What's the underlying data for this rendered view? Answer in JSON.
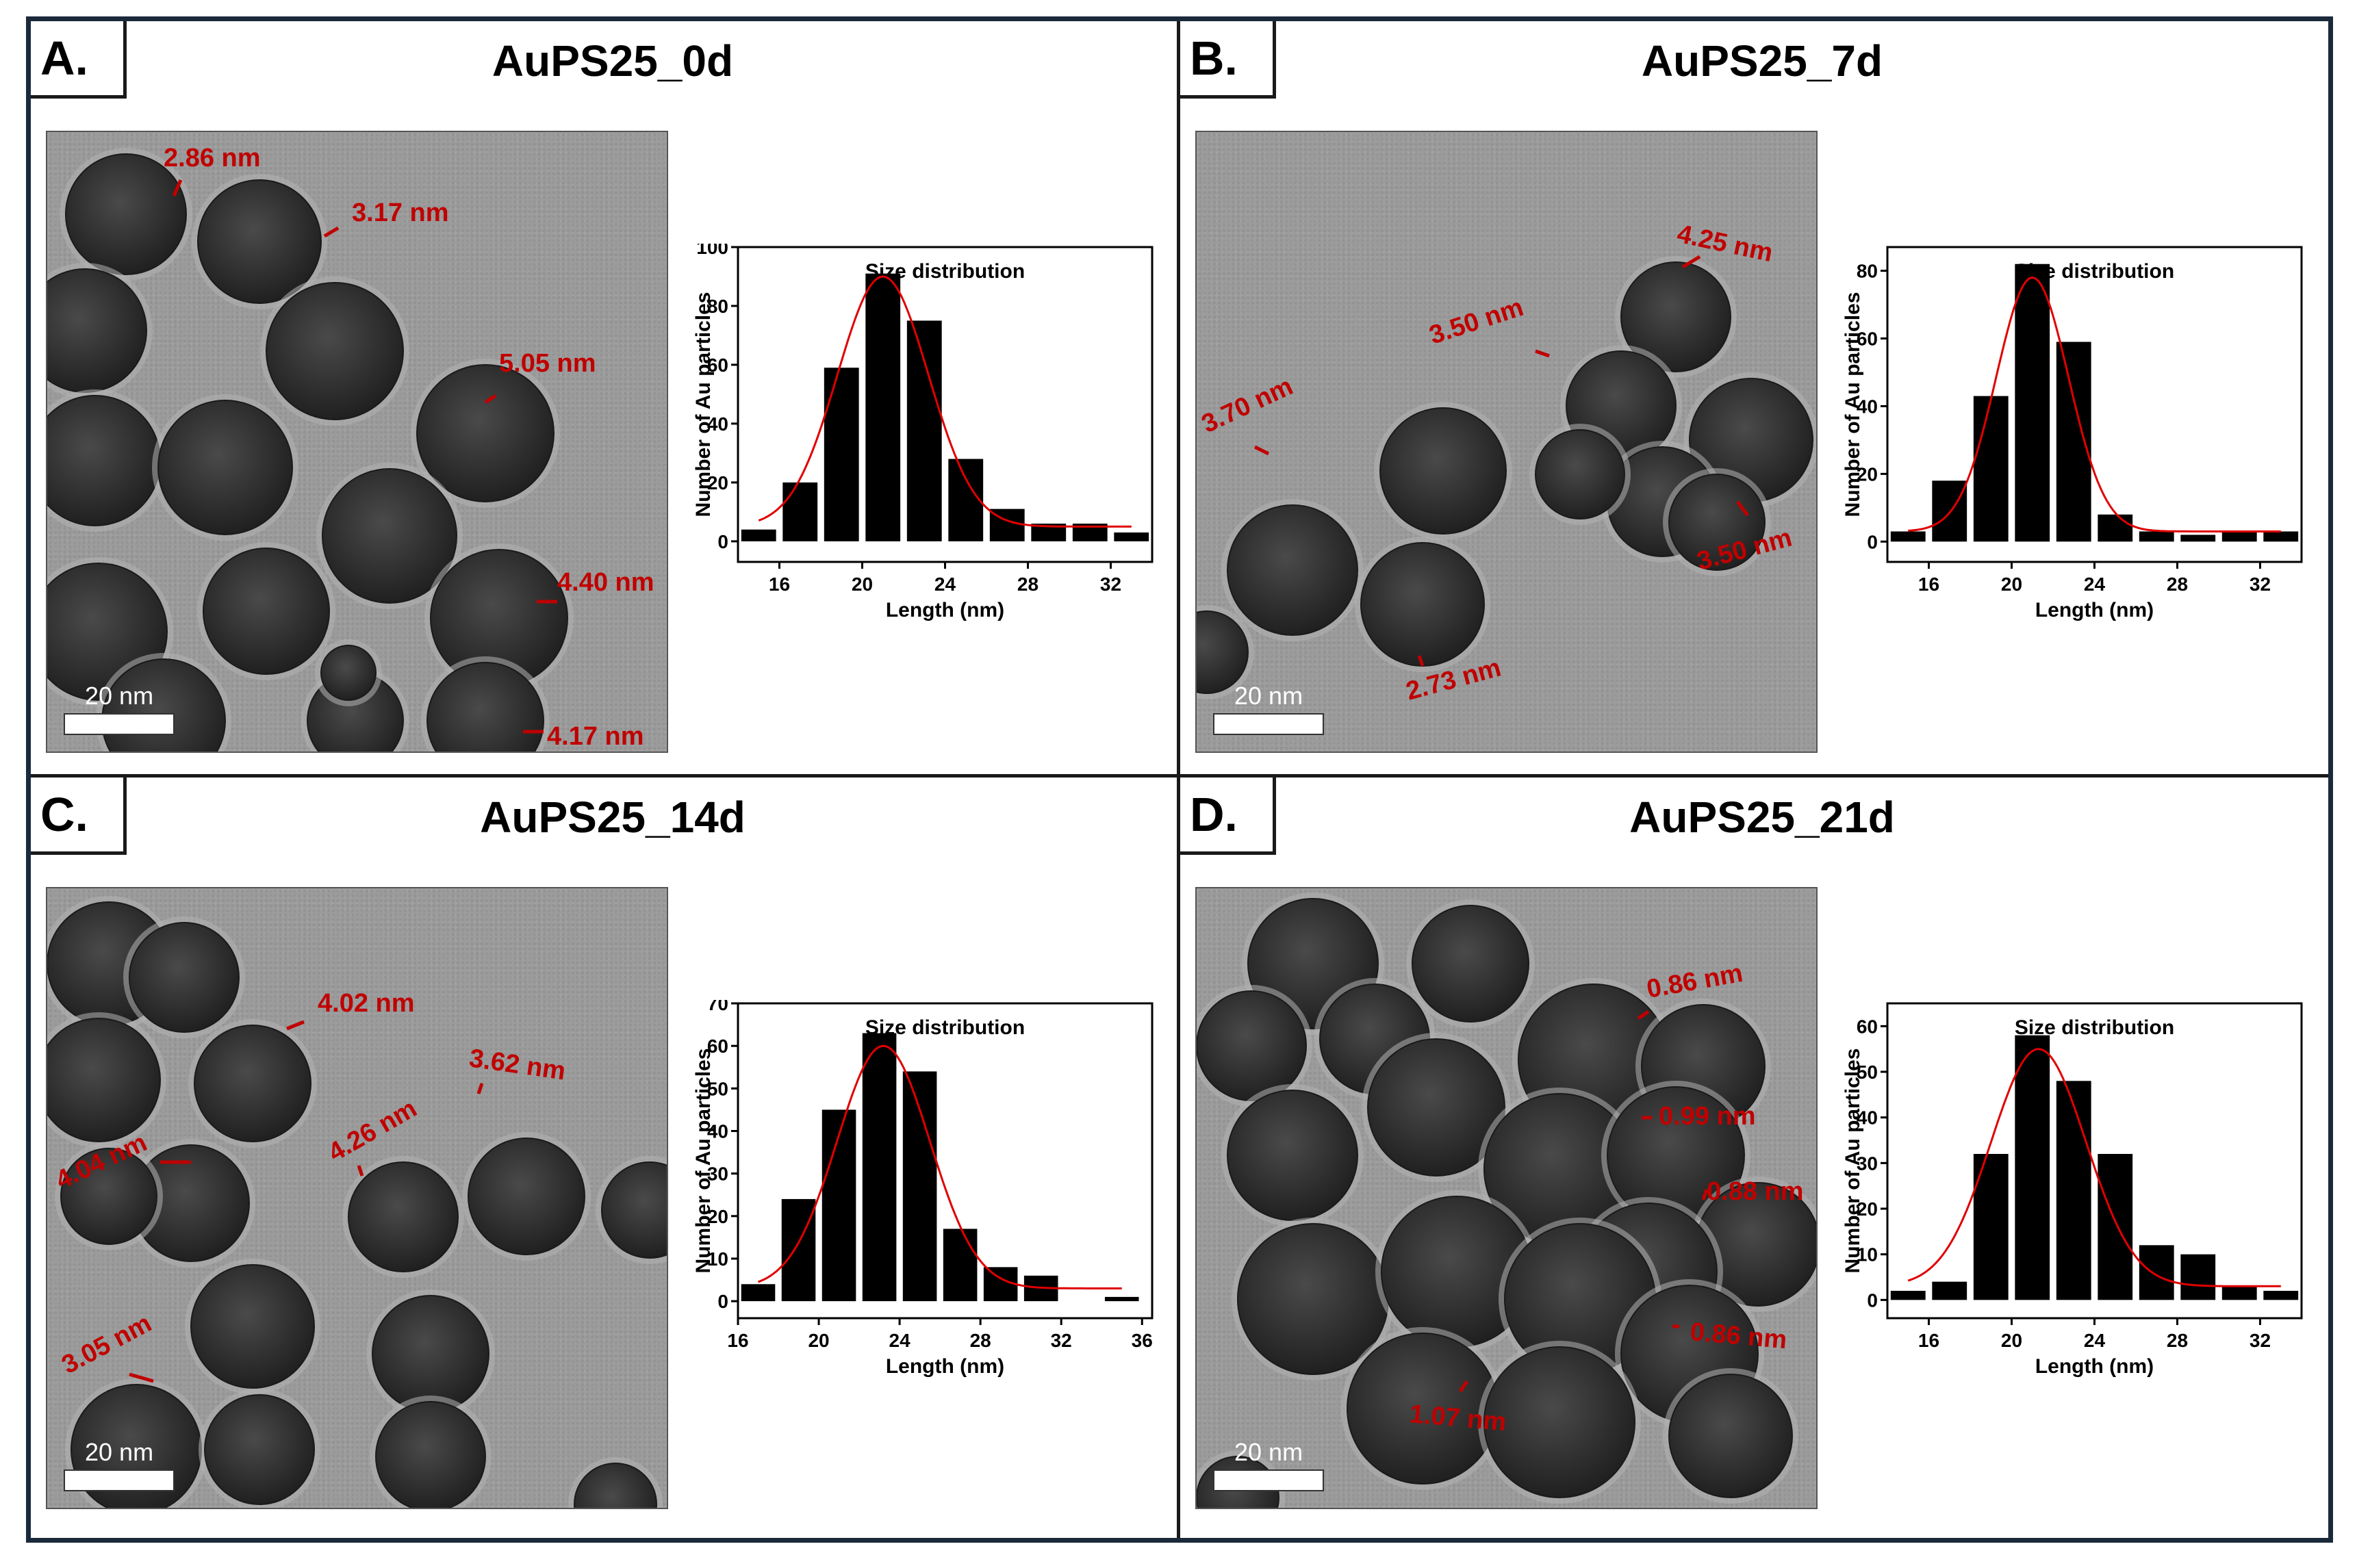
{
  "panels": [
    {
      "label": "A.",
      "title": "AuPS25_0d",
      "scale_bar": "20 nm",
      "shell_labels": [
        "2.86 nm",
        "3.17 nm",
        "5.05 nm",
        "4.40 nm",
        "4.17 nm"
      ]
    },
    {
      "label": "B.",
      "title": "AuPS25_7d",
      "scale_bar": "20 nm",
      "shell_labels": [
        "4.25 nm",
        "3.50 nm",
        "3.70 nm",
        "3.50 nm",
        "2.73 nm"
      ]
    },
    {
      "label": "C.",
      "title": "AuPS25_14d",
      "scale_bar": "20 nm",
      "shell_labels": [
        "4.02 nm",
        "3.62 nm",
        "4.26 nm",
        "4.04 nm",
        "3.05 nm"
      ]
    },
    {
      "label": "D.",
      "title": "AuPS25_21d",
      "scale_bar": "20 nm",
      "shell_labels": [
        "0.86 nm",
        "0.99 nm",
        "0.88 nm",
        "0.86 nm",
        "1.07 nm"
      ]
    }
  ],
  "colors": {
    "annotation": "#c00000",
    "bars": "#000000",
    "fit": "#e00000",
    "frame": "#1a2a3a"
  },
  "chart_data": [
    {
      "type": "bar",
      "title": "Size distribution",
      "xlabel": "Length (nm)",
      "ylabel": "Number of Au particles",
      "x": [
        15,
        17,
        19,
        21,
        23,
        25,
        27,
        29,
        31,
        33
      ],
      "values": [
        4,
        20,
        59,
        91,
        75,
        28,
        11,
        6,
        6,
        3
      ],
      "xlim": [
        14,
        34
      ],
      "xticks": [
        16,
        20,
        24,
        28,
        32
      ],
      "ylim": [
        -7,
        100
      ],
      "yticks": [
        0,
        20,
        40,
        60,
        80,
        100
      ],
      "fit": {
        "type": "gaussian",
        "peak": 90,
        "center": 21,
        "sigma": 2.2,
        "baseline": 5
      }
    },
    {
      "type": "bar",
      "title": "Size distribution",
      "xlabel": "Length (nm)",
      "ylabel": "Number of Au particles",
      "x": [
        15,
        17,
        19,
        21,
        23,
        25,
        27,
        29,
        31,
        33
      ],
      "values": [
        3,
        18,
        43,
        82,
        59,
        8,
        3,
        2,
        3,
        3
      ],
      "xlim": [
        14,
        34
      ],
      "xticks": [
        16,
        20,
        24,
        28,
        32
      ],
      "ylim": [
        -6,
        87
      ],
      "yticks": [
        0,
        20,
        40,
        60,
        80
      ],
      "fit": {
        "type": "gaussian",
        "peak": 78,
        "center": 21,
        "sigma": 1.75,
        "baseline": 3
      }
    },
    {
      "type": "bar",
      "title": "Size distribution",
      "xlabel": "Length (nm)",
      "ylabel": "Number of Au particles",
      "x": [
        17,
        19,
        21,
        23,
        25,
        27,
        29,
        31,
        33,
        35
      ],
      "values": [
        4,
        24,
        45,
        63,
        54,
        17,
        8,
        6,
        0,
        1
      ],
      "xlim": [
        16,
        36.5
      ],
      "xticks": [
        16,
        20,
        24,
        28,
        32,
        36
      ],
      "ylim": [
        -4,
        70
      ],
      "yticks": [
        0,
        10,
        20,
        30,
        40,
        50,
        60,
        70
      ],
      "fit": {
        "type": "gaussian",
        "peak": 60,
        "center": 23.2,
        "sigma": 2.3,
        "baseline": 3
      }
    },
    {
      "type": "bar",
      "title": "Size distribution",
      "xlabel": "Length (nm)",
      "ylabel": "Number of Au particles",
      "x": [
        15,
        17,
        19,
        21,
        23,
        25,
        27,
        29,
        31,
        33
      ],
      "values": [
        2,
        4,
        32,
        58,
        48,
        32,
        12,
        10,
        3,
        2
      ],
      "xlim": [
        14,
        34
      ],
      "xticks": [
        16,
        20,
        24,
        28,
        32
      ],
      "ylim": [
        -4,
        65
      ],
      "yticks": [
        0,
        10,
        20,
        30,
        40,
        50,
        60
      ],
      "fit": {
        "type": "gaussian",
        "peak": 55,
        "center": 21.3,
        "sigma": 2.3,
        "baseline": 3
      }
    }
  ]
}
